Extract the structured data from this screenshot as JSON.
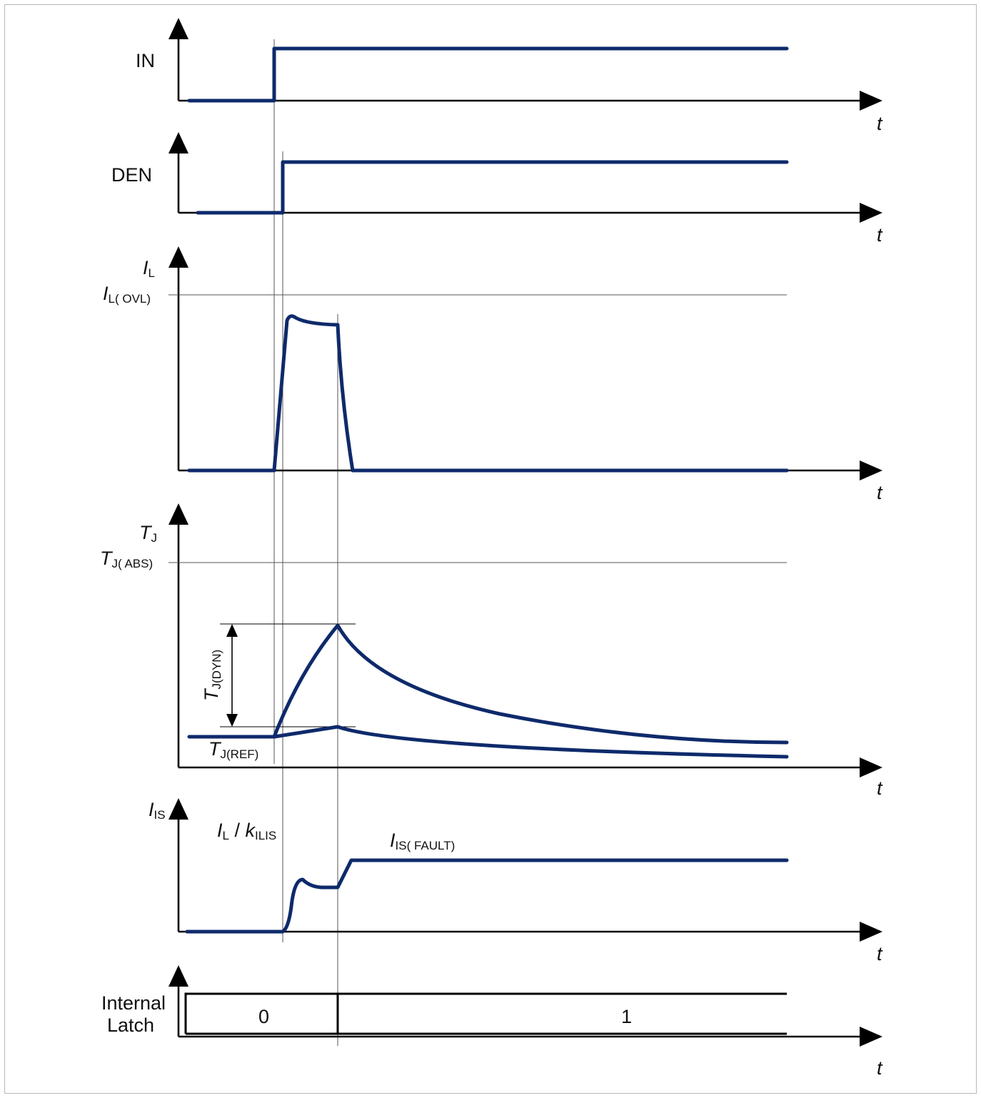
{
  "axis_symbol": "t",
  "signals": {
    "in": {
      "label": "IN"
    },
    "den": {
      "label": "DEN"
    },
    "il": {
      "label_main": "I",
      "label_sub": "L",
      "threshold_main": "I",
      "threshold_sub": "L( OVL)"
    },
    "tj": {
      "label_main": "T",
      "label_sub": "J",
      "threshold_main": "T",
      "threshold_sub": "J( ABS)",
      "dyn_main": "T",
      "dyn_sub": "J(DYN)",
      "ref_main": "T",
      "ref_sub": "J(REF)"
    },
    "is": {
      "label_main": "I",
      "label_sub": "IS",
      "ratio_main": "I",
      "ratio_sub": "L",
      "ratio_sep": " / ",
      "ratio_k": "k",
      "ratio_k_sub": "ILIS",
      "fault_main": "I",
      "fault_sub": "IS( FAULT)"
    },
    "latch": {
      "label_line1": "Internal",
      "label_line2": "Latch",
      "state_before": "0",
      "state_after": "1"
    }
  },
  "colors": {
    "signal": "#0e2a6b",
    "axis": "#000000",
    "frame": "#b8b8b8"
  }
}
